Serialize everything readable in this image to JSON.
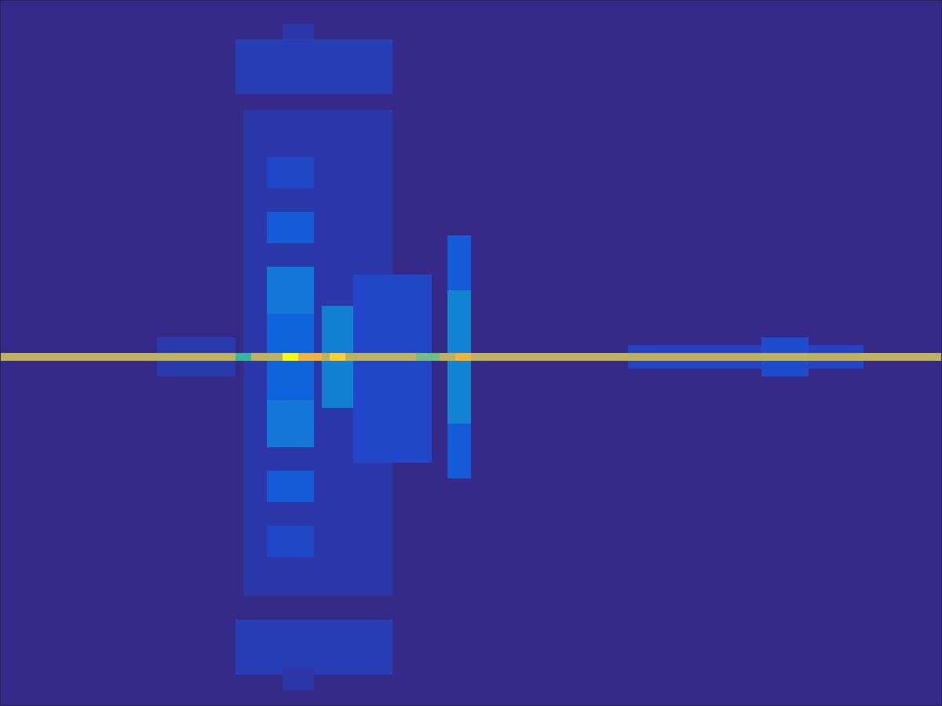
{
  "chart_data": {
    "type": "heatmap",
    "tick_labels": false,
    "xlim": [
      0,
      120
    ],
    "ylim": [
      0,
      90
    ],
    "clim": [
      0,
      1
    ],
    "cells": [
      {
        "x": [
          0,
          120
        ],
        "y": [
          0,
          90
        ],
        "value": 0
      },
      {
        "x": [
          30,
          50
        ],
        "y": [
          5,
          12
        ],
        "value": 0.07
      },
      {
        "x": [
          30,
          50
        ],
        "y": [
          79,
          86
        ],
        "value": 0.07
      },
      {
        "x": [
          36,
          40
        ],
        "y": [
          3,
          5
        ],
        "value": 0.05
      },
      {
        "x": [
          36,
          40
        ],
        "y": [
          85,
          88
        ],
        "value": 0.05
      },
      {
        "x": [
          31,
          50
        ],
        "y": [
          14,
          76
        ],
        "value": 0.05
      },
      {
        "x": [
          34,
          40
        ],
        "y": [
          20,
          24
        ],
        "value": 0.1
      },
      {
        "x": [
          34,
          40
        ],
        "y": [
          67,
          71
        ],
        "value": 0.1
      },
      {
        "x": [
          34,
          40
        ],
        "y": [
          27,
          31
        ],
        "value": 0.17
      },
      {
        "x": [
          34,
          40
        ],
        "y": [
          60,
          64
        ],
        "value": 0.17
      },
      {
        "x": [
          45,
          55
        ],
        "y": [
          35,
          59
        ],
        "value": 0.1
      },
      {
        "x": [
          34,
          40
        ],
        "y": [
          34,
          40
        ],
        "value": 0.27
      },
      {
        "x": [
          34,
          40
        ],
        "y": [
          51,
          57
        ],
        "value": 0.27
      },
      {
        "x": [
          34,
          40
        ],
        "y": [
          40,
          51
        ],
        "value": 0.2
      },
      {
        "x": [
          41,
          45
        ],
        "y": [
          39,
          52
        ],
        "value": 0.3
      },
      {
        "x": [
          57,
          60
        ],
        "y": [
          30,
          61
        ],
        "value": 0.17
      },
      {
        "x": [
          57,
          60
        ],
        "y": [
          37,
          54
        ],
        "value": 0.32
      },
      {
        "x": [
          20,
          30
        ],
        "y": [
          43,
          48
        ],
        "value": 0.06
      },
      {
        "x": [
          80,
          110
        ],
        "y": [
          44,
          47
        ],
        "value": 0.09
      },
      {
        "x": [
          97,
          103
        ],
        "y": [
          43,
          48
        ],
        "value": 0.12
      },
      {
        "x": [
          0,
          120
        ],
        "y": [
          45,
          46
        ],
        "value": 0.8
      },
      {
        "x": [
          30,
          32
        ],
        "y": [
          45,
          46
        ],
        "value": 0.6
      },
      {
        "x": [
          36,
          38
        ],
        "y": [
          45,
          46
        ],
        "value": 1
      },
      {
        "x": [
          38,
          41
        ],
        "y": [
          45,
          46
        ],
        "value": 0.9
      },
      {
        "x": [
          42,
          44
        ],
        "y": [
          45,
          46
        ],
        "value": 0.95
      },
      {
        "x": [
          53,
          56
        ],
        "y": [
          45,
          46
        ],
        "value": 0.68
      },
      {
        "x": [
          58,
          60
        ],
        "y": [
          45,
          46
        ],
        "value": 0.9
      }
    ]
  }
}
